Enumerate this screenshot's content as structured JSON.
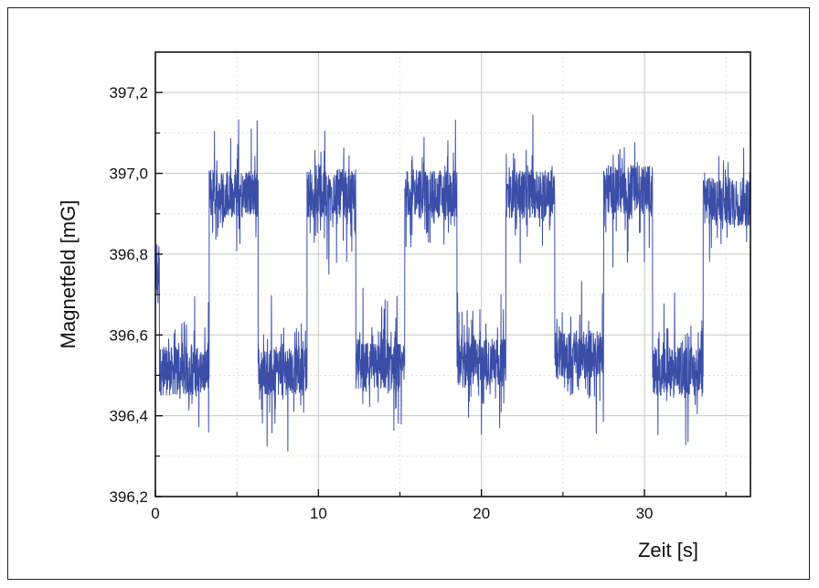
{
  "chart_data": {
    "type": "line",
    "title": "",
    "xlabel": "Zeit [s]",
    "ylabel": "Magnetfeld [mG]",
    "xlim": [
      0,
      36.5
    ],
    "ylim": [
      396.2,
      397.3
    ],
    "x_ticks": [
      0,
      10,
      20,
      30
    ],
    "x_tick_labels": [
      "0",
      "10",
      "20",
      "30"
    ],
    "y_ticks": [
      396.2,
      396.4,
      396.6,
      396.8,
      397.0,
      397.2
    ],
    "y_tick_labels": [
      "396,2",
      "396,4",
      "396,6",
      "396,8",
      "397,0",
      "397,2"
    ],
    "grid": true,
    "line_color": "#3a4ea8",
    "series": [
      {
        "segments": [
          {
            "x_start": 0.0,
            "x_end": 0.25,
            "mean": 396.75
          },
          {
            "x_start": 0.25,
            "x_end": 3.3,
            "mean": 396.51
          },
          {
            "x_start": 3.3,
            "x_end": 6.3,
            "mean": 396.95
          },
          {
            "x_start": 6.3,
            "x_end": 9.3,
            "mean": 396.51
          },
          {
            "x_start": 9.3,
            "x_end": 12.3,
            "mean": 396.95
          },
          {
            "x_start": 12.3,
            "x_end": 15.3,
            "mean": 396.52
          },
          {
            "x_start": 15.3,
            "x_end": 18.5,
            "mean": 396.95
          },
          {
            "x_start": 18.5,
            "x_end": 21.5,
            "mean": 396.53
          },
          {
            "x_start": 21.5,
            "x_end": 24.5,
            "mean": 396.95
          },
          {
            "x_start": 24.5,
            "x_end": 27.5,
            "mean": 396.55
          },
          {
            "x_start": 27.5,
            "x_end": 30.5,
            "mean": 396.96
          },
          {
            "x_start": 30.5,
            "x_end": 33.6,
            "mean": 396.51
          },
          {
            "x_start": 33.6,
            "x_end": 36.5,
            "mean": 396.93
          }
        ],
        "noise_amplitude": 0.06,
        "max_spike": 0.2
      }
    ]
  }
}
